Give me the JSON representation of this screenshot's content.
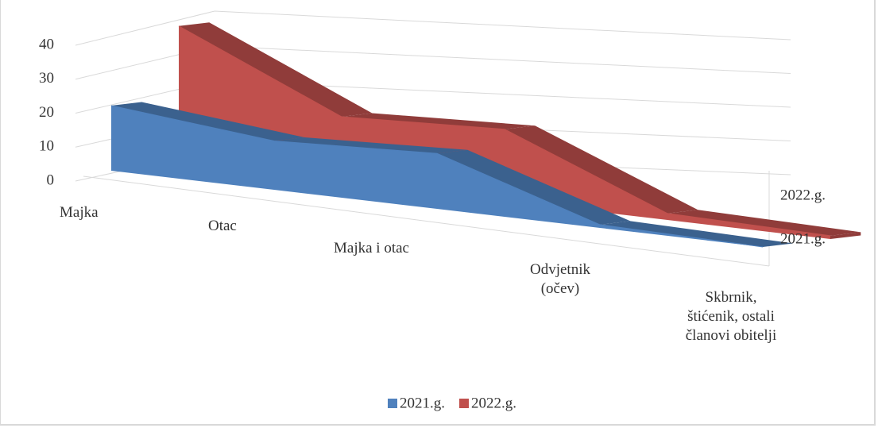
{
  "chart_data": {
    "type": "area3d",
    "categories": [
      "Majka",
      "Otac",
      "Majka i otac",
      "Odvjetnik (očev)",
      "Skbrnik, štićenik, ostali članovi obitelji"
    ],
    "series": [
      {
        "name": "2021.g.",
        "color": "#4f81bd",
        "values": [
          20,
          15,
          17,
          1,
          0
        ]
      },
      {
        "name": "2022.g.",
        "color": "#c0504d",
        "values": [
          42,
          20,
          22,
          2,
          1
        ]
      }
    ],
    "ylim": [
      0,
      40
    ],
    "yticks": [
      0,
      10,
      20,
      30,
      40
    ],
    "grid": true,
    "legend": "bottom"
  }
}
